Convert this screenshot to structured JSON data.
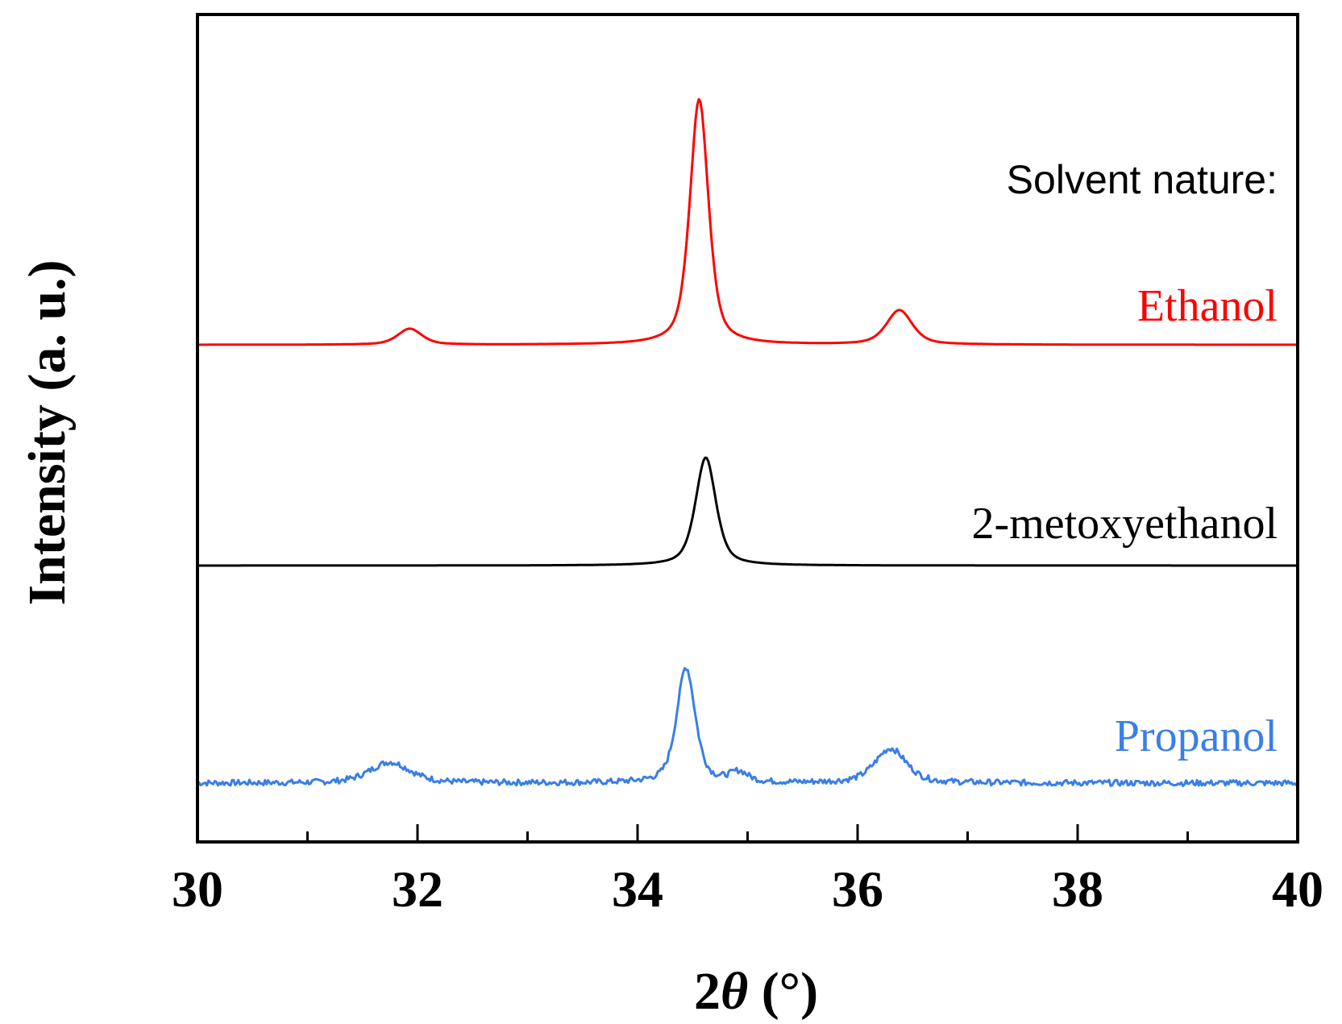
{
  "chart_data": {
    "type": "line",
    "title": "",
    "xlabel_prefix": "2",
    "xlabel_theta": "θ",
    "xlabel_suffix": " (°)",
    "ylabel": "Intensity (a. u.)",
    "xlim": [
      30,
      40
    ],
    "x_ticks": [
      30,
      32,
      34,
      36,
      38,
      40
    ],
    "x_tick_labels": [
      "30",
      "32",
      "34",
      "36",
      "38",
      "40"
    ],
    "annotation": "Solvent nature:",
    "y_units": "arbitrary (stacked offsets)",
    "series": [
      {
        "name": "Ethanol",
        "color": "#ff0000",
        "baseline": 0.0,
        "noise": 0,
        "peaks": [
          {
            "pos": 31.93,
            "height": 0.065,
            "width": 0.13
          },
          {
            "pos": 34.56,
            "height": 1.0,
            "width": 0.1
          },
          {
            "pos": 36.38,
            "height": 0.14,
            "width": 0.14
          }
        ]
      },
      {
        "name": "2-metoxyethanol",
        "color": "#000000",
        "baseline": 0.0,
        "noise": 0,
        "peaks": [
          {
            "pos": 34.62,
            "height": 0.44,
            "width": 0.11
          }
        ]
      },
      {
        "name": "Propanol",
        "color": "#3a7ee8",
        "baseline": 0.0,
        "noise": 0.012,
        "peaks": [
          {
            "pos": 31.75,
            "height": 0.085,
            "width": 0.22
          },
          {
            "pos": 34.44,
            "height": 0.47,
            "width": 0.1
          },
          {
            "pos": 34.92,
            "height": 0.04,
            "width": 0.1
          },
          {
            "pos": 36.3,
            "height": 0.14,
            "width": 0.17
          }
        ]
      }
    ]
  }
}
